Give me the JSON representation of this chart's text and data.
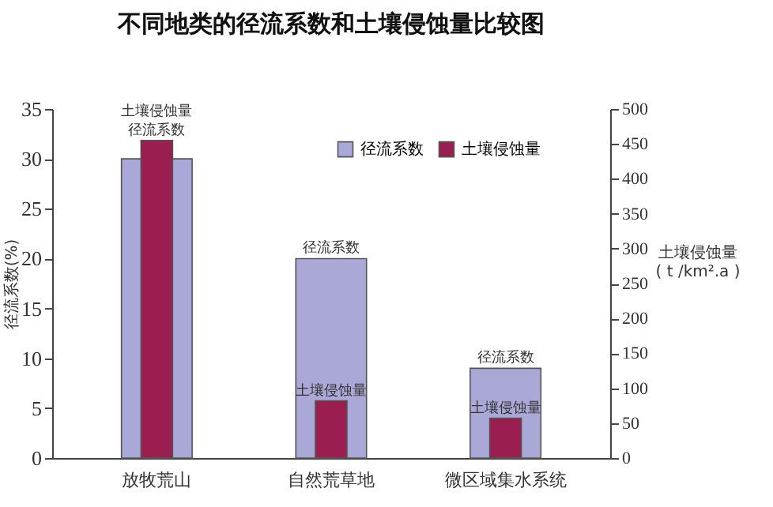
{
  "chart_data": {
    "type": "bar",
    "title": "不同地类的径流系数和土壤侵蚀量比较图",
    "categories": [
      "放牧荒山",
      "自然荒草地",
      "微区域集水系统"
    ],
    "series": [
      {
        "name": "径流系数",
        "color": "#a9a8d6",
        "values": [
          30,
          20,
          9
        ],
        "value_labels": [
          "径流系数",
          "径流系数",
          "径流系数"
        ]
      },
      {
        "name": "土壤侵蚀量",
        "color": "#9b1e50",
        "values": [
          455,
          82,
          57
        ],
        "axis": "y2",
        "value_labels": [
          "土壤侵蚀量",
          "土壤侵蚀量",
          "土壤侵蚀量"
        ]
      }
    ],
    "ylabel": "径流系数(%)",
    "y2label": "土壤侵蚀量\n( t /km².a )",
    "ylim": [
      0,
      35
    ],
    "yticks": [
      0,
      5,
      10,
      15,
      20,
      25,
      30,
      35
    ],
    "y2lim": [
      0,
      500
    ],
    "y2ticks": [
      0,
      50,
      100,
      150,
      200,
      250,
      300,
      350,
      400,
      450,
      500
    ],
    "grid": false,
    "legend": "top right"
  }
}
